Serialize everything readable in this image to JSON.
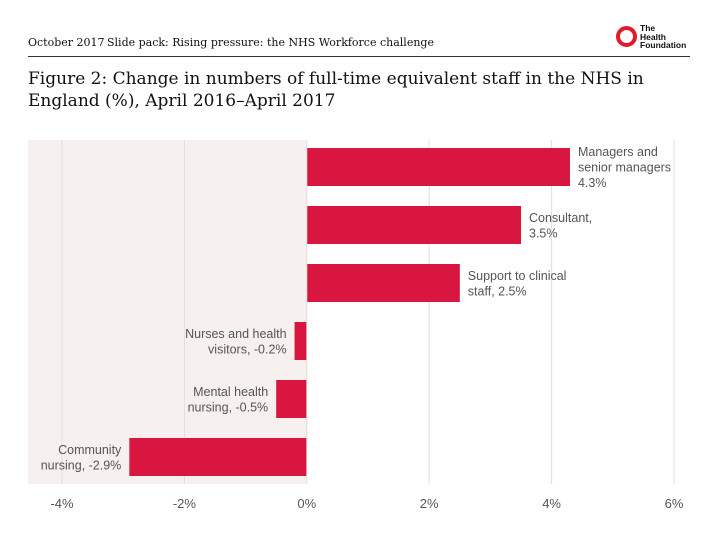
{
  "header": {
    "date": "October 2017",
    "pack": "Slide pack: Rising pressure: the NHS Workforce challenge",
    "logo_text": "The\nHealth\nFoundation"
  },
  "colors": {
    "bar": "#d8163f",
    "negative_bg": "#f6f1ee",
    "grid": "#e2dede",
    "logo_red": "#e0192c"
  },
  "chart_data": {
    "type": "bar",
    "orientation": "horizontal",
    "title": "Figure 2: Change in numbers of full-time equivalent staff in the NHS in England (%), April 2016–April 2017",
    "xlabel": "",
    "ylabel": "",
    "xlim": [
      -4,
      6
    ],
    "x_ticks": [
      "-4%",
      "-2%",
      "0%",
      "2%",
      "4%",
      "6%"
    ],
    "x_tick_values": [
      -4,
      -2,
      0,
      2,
      4,
      6
    ],
    "categories": [
      "Managers and senior managers",
      "Consultant",
      "Support to clinical staff",
      "Nurses and health visitors",
      "Mental health nursing",
      "Community nursing"
    ],
    "values": [
      4.3,
      3.5,
      2.5,
      -0.2,
      -0.5,
      -2.9
    ],
    "data_labels": [
      [
        "Managers and",
        "senior managers",
        "4.3%"
      ],
      [
        "Consultant,",
        "3.5%"
      ],
      [
        "Support to clinical",
        "staff, 2.5%"
      ],
      [
        "Nurses and health",
        "visitors, -0.2%"
      ],
      [
        "Mental health",
        "nursing, -0.5%"
      ],
      [
        "Community",
        "nursing, -2.9%"
      ]
    ]
  }
}
